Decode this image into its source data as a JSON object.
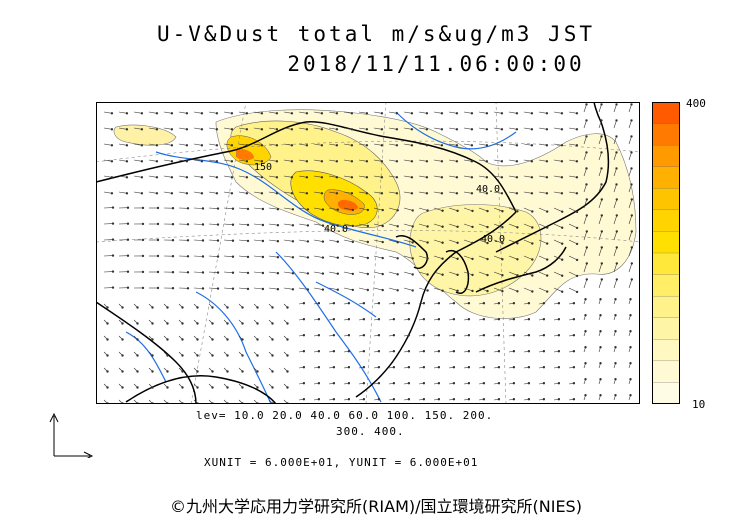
{
  "title": "U-V&Dust total m/s&ug/m3 JST",
  "datetime": "2018/11/11.06:00:00",
  "colorbar": {
    "max_label": "400",
    "min_label": "10",
    "colors": [
      "#ff5a00",
      "#ff7a00",
      "#ff9a00",
      "#ffb000",
      "#ffc400",
      "#ffd400",
      "#ffe000",
      "#ffe83a",
      "#ffee66",
      "#fff28a",
      "#fff5a6",
      "#fff8c0",
      "#fffad4",
      "#fffce6"
    ]
  },
  "contour_labels": [
    "40.0",
    "40.0",
    "40.0",
    "150"
  ],
  "levels_line1": "lev= 10.0 20.0 40.0 60.0 100. 150. 200.",
  "levels_line2": "300. 400.",
  "units": "XUNIT = 6.000E+01, YUNIT = 6.000E+01",
  "credit": "©九州大学応用力学研究所(RIAM)/国立環境研究所(NIES)",
  "map": {
    "coastline_color": "#000000",
    "river_color": "#1e6fe8",
    "vector_color": "#333333",
    "grid_color": "#888888"
  }
}
